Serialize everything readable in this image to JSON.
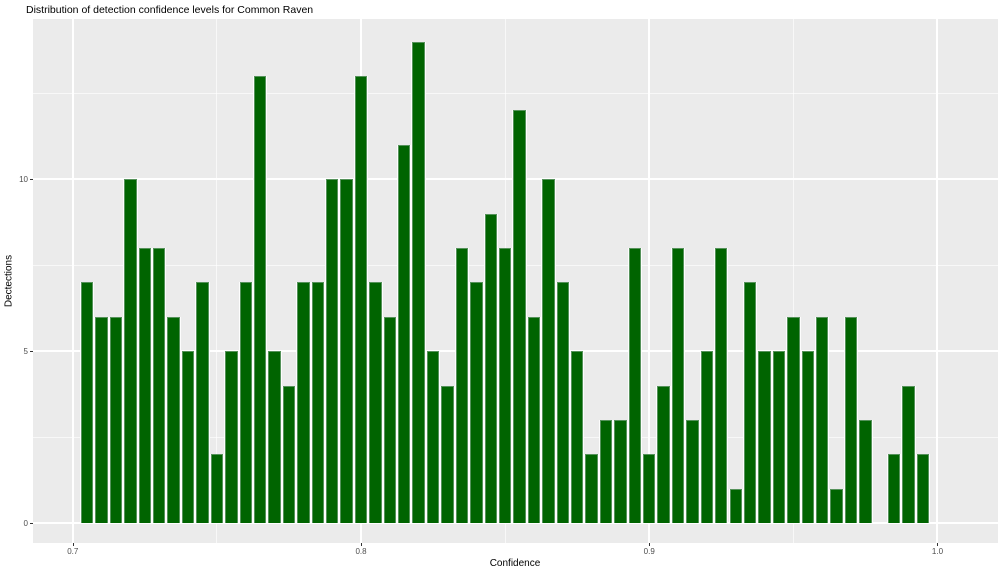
{
  "title": "Distribution of detection confidence levels for Common Raven",
  "chart_data": {
    "type": "bar",
    "subtype": "histogram",
    "title": "Distribution of detection confidence levels for Common Raven",
    "xlabel": "Confidence",
    "ylabel": "Dectections",
    "bin_width": 0.005,
    "bin_start": 0.7025,
    "bin_centers": [
      0.705,
      0.71,
      0.715,
      0.72,
      0.725,
      0.73,
      0.735,
      0.74,
      0.745,
      0.75,
      0.755,
      0.76,
      0.765,
      0.77,
      0.775,
      0.78,
      0.785,
      0.79,
      0.795,
      0.8,
      0.805,
      0.81,
      0.815,
      0.82,
      0.825,
      0.83,
      0.835,
      0.84,
      0.845,
      0.85,
      0.855,
      0.86,
      0.865,
      0.87,
      0.875,
      0.88,
      0.885,
      0.89,
      0.895,
      0.9,
      0.905,
      0.91,
      0.915,
      0.92,
      0.925,
      0.93,
      0.935,
      0.94,
      0.945,
      0.95,
      0.955,
      0.96,
      0.965,
      0.97,
      0.975,
      0.98,
      0.985,
      0.99,
      0.995
    ],
    "counts": [
      7,
      6,
      6,
      10,
      8,
      8,
      6,
      5,
      7,
      2,
      5,
      7,
      13,
      5,
      4,
      7,
      7,
      10,
      10,
      13,
      7,
      6,
      11,
      14,
      5,
      4,
      8,
      7,
      9,
      8,
      12,
      6,
      10,
      7,
      5,
      2,
      3,
      3,
      8,
      2,
      4,
      8,
      3,
      5,
      8,
      1,
      7,
      5,
      5,
      6,
      5,
      6,
      1,
      6,
      3,
      0,
      2,
      4,
      2
    ],
    "x_ticks": [
      0.7,
      0.8,
      0.9,
      1.0
    ],
    "x_tick_labels": [
      "0.7",
      "0.8",
      "0.9",
      "1.0"
    ],
    "x_minor": [
      0.75,
      0.85,
      0.95
    ],
    "y_ticks": [
      0,
      5,
      10
    ],
    "y_tick_labels": [
      "0",
      "5",
      "10"
    ],
    "y_minor": [
      2.5,
      7.5,
      12.5
    ],
    "xlim": [
      0.6862,
      1.021
    ],
    "ylim": [
      -0.58,
      14.66
    ],
    "grid": true,
    "legend": "none",
    "colors": {
      "bar_fill": "#006400",
      "bar_edge": "#55925a",
      "bar_gap": "#fdfdfd",
      "panel_bg": "#ebebeb",
      "gridline": "#ffffff",
      "tick_mark": "#333333",
      "tick_text": "#4d4d4d",
      "title_text": "#000000"
    }
  }
}
